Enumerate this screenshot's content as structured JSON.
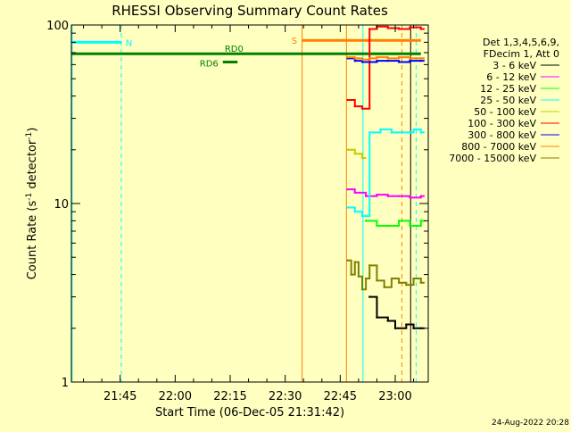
{
  "chart_data": {
    "type": "line",
    "title": "RHESSI Observing Summary Count Rates",
    "xlabel": "Start Time (06-Dec-05 21:31:42)",
    "ylabel": "Count Rate (s⁻¹ detector⁻¹)",
    "ylabel_main": "Count Rate (s",
    "ylabel_sup1": "-1",
    "ylabel_mid": " detector",
    "ylabel_sup2": "-1",
    "ylabel_end": ")",
    "y_scale": "log",
    "ylim": [
      1,
      100
    ],
    "xlim": [
      "21:31:42",
      "23:09:00"
    ],
    "x_ticks": [
      "21:45",
      "22:00",
      "22:15",
      "22:30",
      "22:45",
      "23:00"
    ],
    "x_tick_minutes": [
      825,
      840,
      855,
      870,
      885,
      900
    ],
    "x_range_minutes": [
      811.7,
      909.0
    ],
    "y_ticks": [
      "1",
      "10",
      "100"
    ],
    "y_tick_values": [
      1,
      10,
      100
    ],
    "legend_header": [
      "Det 1,3,4,5,6,9,",
      "FDecim 1, Att 0"
    ],
    "legend_placement": "right",
    "series": [
      {
        "name": "3 - 6 keV",
        "color": "#000000",
        "x": [
          893,
          895,
          898,
          900,
          903,
          905,
          907
        ],
        "values": [
          3.0,
          2.3,
          2.2,
          2.0,
          2.1,
          2.0,
          2.0
        ]
      },
      {
        "name": "6 - 12 keV",
        "color": "#ff00ff",
        "x": [
          887,
          889,
          892,
          895,
          898,
          901,
          904,
          907
        ],
        "values": [
          12.0,
          11.5,
          11.0,
          11.2,
          11.0,
          11.0,
          10.8,
          11.0
        ]
      },
      {
        "name": "12 - 25 keV",
        "color": "#00ff00",
        "x": [
          892,
          895,
          898,
          901,
          904,
          907
        ],
        "values": [
          8.0,
          7.5,
          7.5,
          8.0,
          7.5,
          8.0
        ]
      },
      {
        "name": "25 - 50 keV",
        "color": "#00ffff",
        "x": [
          887,
          889,
          891,
          893,
          896,
          899,
          902,
          905,
          907
        ],
        "values": [
          9.5,
          9.0,
          8.5,
          25.0,
          26.0,
          25.0,
          25.0,
          26.0,
          25.0
        ]
      },
      {
        "name": "50 - 100 keV",
        "color": "#c8c800",
        "x": [
          887,
          889,
          891
        ],
        "values": [
          20.0,
          19.0,
          18.0
        ]
      },
      {
        "name": "100 - 300 keV",
        "color": "#ff0000",
        "x": [
          887,
          889,
          891,
          893,
          895,
          898,
          901,
          904,
          907
        ],
        "values": [
          38.0,
          35.0,
          34.0,
          95.0,
          98.0,
          96.0,
          95.0,
          97.0,
          95.0
        ]
      },
      {
        "name": "300 - 800 keV",
        "color": "#0000ff",
        "x": [
          887,
          889,
          891,
          893,
          895,
          898,
          901,
          904,
          907
        ],
        "values": [
          65.0,
          63.0,
          62.0,
          62.0,
          63.0,
          63.0,
          62.0,
          63.0,
          63.0
        ]
      },
      {
        "name": "800 - 7000 keV",
        "color": "#ff8000",
        "x": [
          887,
          889,
          891,
          893,
          895,
          898,
          901,
          904,
          907
        ],
        "values": [
          66.0,
          65.0,
          64.0,
          65.0,
          66.0,
          65.0,
          66.0,
          65.0,
          65.0
        ]
      },
      {
        "name": "7000 - 15000 keV",
        "color": "#808000",
        "x": [
          887,
          888,
          889,
          890,
          891,
          892,
          893,
          895,
          897,
          899,
          901,
          903,
          905,
          907
        ],
        "values": [
          4.8,
          4.0,
          4.7,
          3.9,
          3.3,
          3.8,
          4.5,
          3.7,
          3.4,
          3.8,
          3.6,
          3.5,
          3.8,
          3.6
        ]
      }
    ],
    "annotations": [
      {
        "text": "N",
        "color": "#00ffff",
        "x_start": 811.7,
        "x_end": 825.5,
        "value": 80
      },
      {
        "text": "S",
        "color": "#ff8000",
        "x_start": 874.5,
        "x_end": 907,
        "value": 82
      },
      {
        "text": "RD0",
        "color": "#008000",
        "x_start": 811.7,
        "x_end": 907,
        "value": 69
      },
      {
        "text": "RD6",
        "color": "#008000",
        "x_start": 853,
        "x_end": 857,
        "value": 62
      }
    ],
    "event_lines": [
      {
        "color": "#00ffff",
        "x": 811.9,
        "style": "solid"
      },
      {
        "color": "#00ffff",
        "x": 825.3,
        "style": "dashed"
      },
      {
        "color": "#ff8000",
        "x": 874.6,
        "style": "solid"
      },
      {
        "color": "#ff8000",
        "x": 886.7,
        "style": "solid"
      },
      {
        "color": "#00ffff",
        "x": 891.2,
        "style": "solid"
      },
      {
        "color": "#ff8000",
        "x": 901.8,
        "style": "dashed"
      },
      {
        "color": "#000000",
        "x": 904.2,
        "style": "solid"
      },
      {
        "color": "#00ffff",
        "x": 905.7,
        "style": "dashed"
      }
    ],
    "grid": false,
    "footer_date": "24-Aug-2022 20:28"
  }
}
